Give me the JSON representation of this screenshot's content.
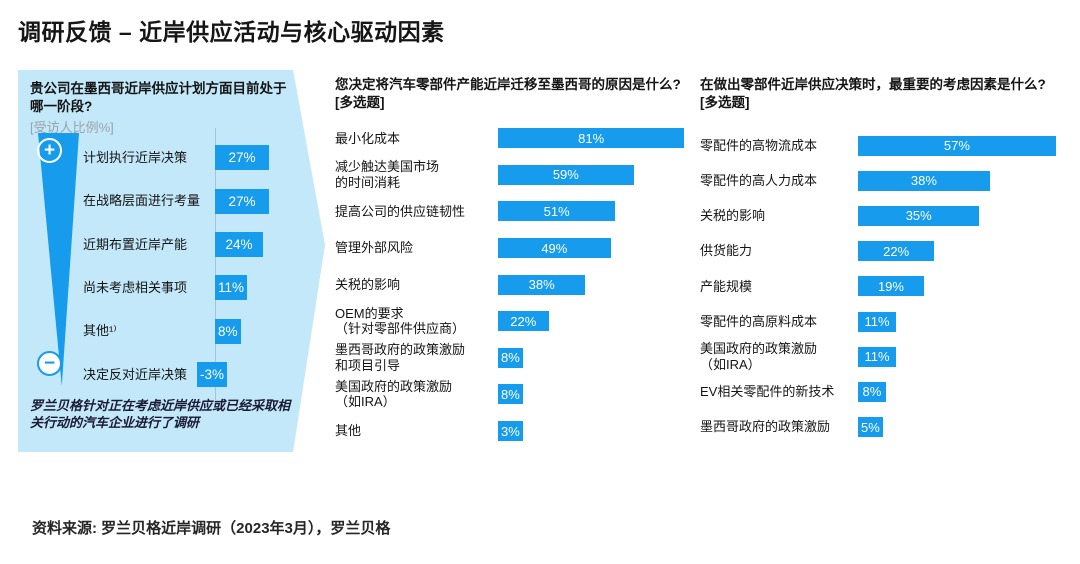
{
  "page_title": "调研反馈 – 近岸供应活动与核心驱动因素",
  "footer": {
    "source": "资料来源: 罗兰贝格近岸调研（2023年3月），罗兰贝格"
  },
  "icons": {
    "plus_glyph": "+",
    "minus_glyph": "−"
  },
  "colors": {
    "bar_blue": "#169bed",
    "panel_bg": "#c2e8f9",
    "subtitle_gray": "#9ca3ab"
  },
  "chart_data": [
    {
      "type": "bar",
      "orientation": "horizontal",
      "title": "贵公司在墨西哥近岸供应计划方面目前处于哪一阶段?",
      "subtitle": "[受访人比例%]",
      "unit": "%",
      "categories": [
        "计划执行近岸决策",
        "在战略层面进行考量",
        "近期布置近岸产能",
        "尚未考虑相关事项",
        "其他¹⁾",
        "决定反对近岸决策"
      ],
      "values": [
        27,
        27,
        24,
        11,
        8,
        -3
      ],
      "note": "罗兰贝格针对正在考虑近岸供应或已经采取相关行动的汽车企业进行了调研",
      "annotations": [
        "plus-pole",
        "minus-pole"
      ]
    },
    {
      "type": "bar",
      "orientation": "horizontal",
      "title": "您决定将汽车零部件产能近岸迁移至墨西哥的原因是什么?",
      "subtitle": "[多选题]",
      "unit": "%",
      "categories": [
        "最小化成本",
        "减少触达美国市场\n的时间消耗",
        "提高公司的供应链韧性",
        "管理外部风险",
        "关税的影响",
        "OEM的要求\n（针对零部件供应商）",
        "墨西哥政府的政策激励\n和项目引导",
        "美国政府的政策激励\n（如IRA）",
        "其他"
      ],
      "values": [
        81,
        59,
        51,
        49,
        38,
        22,
        8,
        8,
        3
      ]
    },
    {
      "type": "bar",
      "orientation": "horizontal",
      "title": "在做出零部件近岸供应决策时，最重要的考虑因素是什么?",
      "subtitle": "[多选题]",
      "unit": "%",
      "categories": [
        "零配件的高物流成本",
        "零配件的高人力成本",
        "关税的影响",
        "供货能力",
        "产能规模",
        "零配件的高原料成本",
        "美国政府的政策激励\n（如IRA）",
        "EV相关零配件的新技术",
        "墨西哥政府的政策激励"
      ],
      "values": [
        57,
        38,
        35,
        22,
        19,
        11,
        11,
        8,
        5
      ]
    }
  ]
}
